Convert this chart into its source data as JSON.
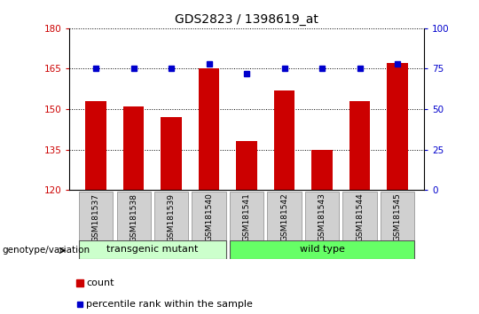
{
  "title": "GDS2823 / 1398619_at",
  "samples": [
    "GSM181537",
    "GSM181538",
    "GSM181539",
    "GSM181540",
    "GSM181541",
    "GSM181542",
    "GSM181543",
    "GSM181544",
    "GSM181545"
  ],
  "counts": [
    153,
    151,
    147,
    165,
    138,
    157,
    135,
    153,
    167
  ],
  "percentiles": [
    75,
    75,
    75,
    78,
    72,
    75,
    75,
    75,
    78
  ],
  "ylim_left": [
    120,
    180
  ],
  "ylim_right": [
    0,
    100
  ],
  "yticks_left": [
    120,
    135,
    150,
    165,
    180
  ],
  "yticks_right": [
    0,
    25,
    50,
    75,
    100
  ],
  "bar_color": "#cc0000",
  "dot_color": "#0000cc",
  "bar_bottom": 120,
  "group_labels": [
    "transgenic mutant",
    "wild type"
  ],
  "group_ranges": [
    [
      0,
      3
    ],
    [
      4,
      8
    ]
  ],
  "group_colors_light": [
    "#ccffcc",
    "#66ff66"
  ],
  "legend_count_label": "count",
  "legend_percentile_label": "percentile rank within the sample",
  "genotype_label": "genotype/variation",
  "bg_color": "#ffffff",
  "plot_bg_color": "#ffffff",
  "tick_label_color_left": "#cc0000",
  "tick_label_color_right": "#0000cc"
}
